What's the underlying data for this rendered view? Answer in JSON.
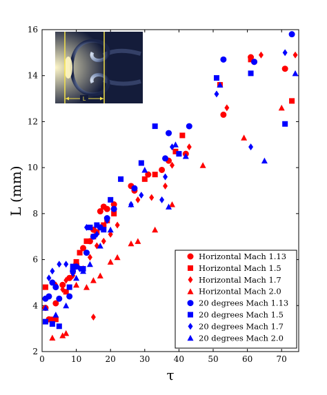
{
  "chart_data": {
    "type": "scatter",
    "title": "",
    "xlabel": "τ",
    "ylabel": "L (mm)",
    "xlim": [
      0,
      75
    ],
    "ylim": [
      2,
      16
    ],
    "xticks": [
      0,
      10,
      20,
      30,
      40,
      50,
      60,
      70
    ],
    "yticks": [
      2,
      4,
      6,
      8,
      10,
      12,
      14,
      16
    ],
    "grid": false,
    "legend_position": "bottom-right",
    "inset": {
      "label": "L",
      "description_color": "#f5e24a"
    },
    "series": [
      {
        "name": "Horizontal Mach 1.13",
        "marker": "circle",
        "color": "#ff0000",
        "points": [
          [
            1,
            3.9
          ],
          [
            2,
            3.4
          ],
          [
            4,
            4.1
          ],
          [
            6,
            4.9
          ],
          [
            8,
            5.2
          ],
          [
            10,
            5.8
          ],
          [
            12,
            6.5
          ],
          [
            14,
            6.8
          ],
          [
            15,
            7.3
          ],
          [
            17,
            8.1
          ],
          [
            18,
            8.3
          ],
          [
            19,
            8.2
          ],
          [
            21,
            8.4
          ],
          [
            26,
            9.2
          ],
          [
            27,
            9.0
          ],
          [
            31,
            9.7
          ],
          [
            35,
            9.9
          ],
          [
            37,
            10.3
          ],
          [
            42,
            10.6
          ],
          [
            53,
            12.3
          ],
          [
            61,
            14.8
          ],
          [
            62,
            14.6
          ],
          [
            71,
            14.3
          ]
        ]
      },
      {
        "name": "Horizontal Mach 1.5",
        "marker": "square",
        "color": "#ff0000",
        "points": [
          [
            1,
            4.8
          ],
          [
            3,
            3.4
          ],
          [
            4,
            3.4
          ],
          [
            7,
            4.6
          ],
          [
            9,
            5.5
          ],
          [
            10,
            5.9
          ],
          [
            11,
            6.3
          ],
          [
            13,
            6.8
          ],
          [
            15,
            7.0
          ],
          [
            16,
            7.2
          ],
          [
            18,
            7.5
          ],
          [
            19,
            7.7
          ],
          [
            21,
            8.0
          ],
          [
            30,
            9.5
          ],
          [
            33,
            9.7
          ],
          [
            39,
            10.7
          ],
          [
            41,
            11.4
          ],
          [
            52,
            13.6
          ],
          [
            61,
            14.7
          ],
          [
            73,
            12.9
          ]
        ]
      },
      {
        "name": "Horizontal Mach 1.7",
        "marker": "diamond",
        "color": "#ff0000",
        "points": [
          [
            4,
            4.9
          ],
          [
            6,
            4.7
          ],
          [
            7,
            5.1
          ],
          [
            9,
            5.3
          ],
          [
            12,
            5.6
          ],
          [
            14,
            6.1
          ],
          [
            15,
            3.5
          ],
          [
            16,
            6.6
          ],
          [
            18,
            6.8
          ],
          [
            20,
            7.1
          ],
          [
            22,
            7.5
          ],
          [
            28,
            8.6
          ],
          [
            32,
            8.7
          ],
          [
            36,
            9.2
          ],
          [
            38,
            10.1
          ],
          [
            43,
            10.9
          ],
          [
            54,
            12.6
          ],
          [
            64,
            14.9
          ],
          [
            74,
            14.9
          ]
        ]
      },
      {
        "name": "Horizontal Mach 2.0",
        "marker": "triangle",
        "color": "#ff0000",
        "points": [
          [
            3,
            2.6
          ],
          [
            6,
            2.7
          ],
          [
            7,
            2.8
          ],
          [
            10,
            4.9
          ],
          [
            13,
            4.8
          ],
          [
            15,
            5.1
          ],
          [
            17,
            5.3
          ],
          [
            20,
            5.9
          ],
          [
            22,
            6.1
          ],
          [
            26,
            6.7
          ],
          [
            28,
            6.8
          ],
          [
            33,
            7.3
          ],
          [
            38,
            8.4
          ],
          [
            47,
            10.1
          ],
          [
            59,
            11.3
          ],
          [
            70,
            12.6
          ]
        ]
      },
      {
        "name": "20 degrees Mach 1.13",
        "marker": "circle",
        "color": "#0000ff",
        "points": [
          [
            1,
            4.3
          ],
          [
            2,
            4.4
          ],
          [
            3,
            5.0
          ],
          [
            4,
            4.8
          ],
          [
            5,
            4.3
          ],
          [
            8,
            4.4
          ],
          [
            9,
            5.5
          ],
          [
            10,
            5.7
          ],
          [
            13,
            6.3
          ],
          [
            15,
            7.0
          ],
          [
            17,
            7.4
          ],
          [
            19,
            7.8
          ],
          [
            21,
            8.2
          ],
          [
            27,
            9.1
          ],
          [
            36,
            10.4
          ],
          [
            37,
            11.5
          ],
          [
            43,
            11.8
          ],
          [
            53,
            14.7
          ],
          [
            62,
            14.6
          ],
          [
            73,
            15.8
          ]
        ]
      },
      {
        "name": "20 degrees Mach 1.5",
        "marker": "square",
        "color": "#0000ff",
        "points": [
          [
            1,
            3.3
          ],
          [
            3,
            3.2
          ],
          [
            5,
            3.1
          ],
          [
            8,
            4.8
          ],
          [
            9,
            5.7
          ],
          [
            12,
            5.6
          ],
          [
            14,
            7.4
          ],
          [
            16,
            7.5
          ],
          [
            18,
            7.3
          ],
          [
            20,
            8.6
          ],
          [
            23,
            9.5
          ],
          [
            29,
            10.2
          ],
          [
            33,
            11.8
          ],
          [
            40,
            10.6
          ],
          [
            51,
            13.9
          ],
          [
            61,
            14.1
          ],
          [
            71,
            11.9
          ]
        ]
      },
      {
        "name": "20 degrees Mach 1.7",
        "marker": "diamond",
        "color": "#0000ff",
        "points": [
          [
            2,
            5.2
          ],
          [
            3,
            5.5
          ],
          [
            5,
            5.8
          ],
          [
            7,
            5.8
          ],
          [
            9,
            5.4
          ],
          [
            11,
            5.6
          ],
          [
            13,
            7.4
          ],
          [
            16,
            7.1
          ],
          [
            19,
            7.7
          ],
          [
            26,
            8.4
          ],
          [
            29,
            8.8
          ],
          [
            35,
            8.6
          ],
          [
            36,
            9.6
          ],
          [
            38,
            10.9
          ],
          [
            51,
            13.2
          ],
          [
            61,
            10.9
          ],
          [
            71,
            15.0
          ]
        ]
      },
      {
        "name": "20 degrees Mach 2.0",
        "marker": "triangle",
        "color": "#0000ff",
        "points": [
          [
            1,
            3.9
          ],
          [
            4,
            3.6
          ],
          [
            7,
            4.0
          ],
          [
            10,
            5.2
          ],
          [
            12,
            5.5
          ],
          [
            14,
            5.8
          ],
          [
            17,
            6.6
          ],
          [
            20,
            7.3
          ],
          [
            26,
            8.4
          ],
          [
            30,
            9.9
          ],
          [
            37,
            8.3
          ],
          [
            39,
            11.0
          ],
          [
            42,
            10.5
          ],
          [
            52,
            13.6
          ],
          [
            65,
            10.3
          ],
          [
            74,
            14.1
          ]
        ]
      }
    ]
  }
}
